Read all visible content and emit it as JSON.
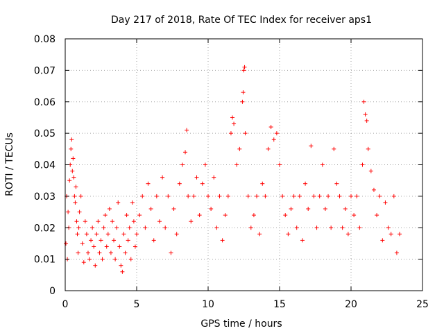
{
  "chart_data": {
    "type": "scatter",
    "title": "Day 217 of 2018, Rate Of TEC Index for receiver aps1",
    "xlabel": "GPS time / hours",
    "ylabel": "ROTI / TECUs",
    "xlim": [
      0,
      25
    ],
    "ylim": [
      0,
      0.08
    ],
    "xticks": [
      "0",
      "5",
      "10",
      "15",
      "20",
      "25"
    ],
    "yticks": [
      "0",
      "0.01",
      "0.02",
      "0.03",
      "0.04",
      "0.05",
      "0.06",
      "0.07",
      "0.08"
    ],
    "xtick_values": [
      0,
      5,
      10,
      15,
      20,
      25
    ],
    "ytick_values": [
      0,
      0.01,
      0.02,
      0.03,
      0.04,
      0.05,
      0.06,
      0.07,
      0.08
    ],
    "grid": true,
    "marker": "+",
    "color": "#ff0000",
    "points": [
      [
        0.05,
        0.015
      ],
      [
        0.1,
        0.03
      ],
      [
        0.15,
        0.01
      ],
      [
        0.2,
        0.025
      ],
      [
        0.25,
        0.02
      ],
      [
        0.3,
        0.035
      ],
      [
        0.35,
        0.04
      ],
      [
        0.4,
        0.045
      ],
      [
        0.45,
        0.048
      ],
      [
        0.5,
        0.038
      ],
      [
        0.55,
        0.042
      ],
      [
        0.6,
        0.036
      ],
      [
        0.65,
        0.03
      ],
      [
        0.7,
        0.028
      ],
      [
        0.75,
        0.033
      ],
      [
        0.8,
        0.022
      ],
      [
        0.85,
        0.018
      ],
      [
        0.9,
        0.012
      ],
      [
        0.95,
        0.02
      ],
      [
        1.0,
        0.025
      ],
      [
        1.1,
        0.03
      ],
      [
        1.2,
        0.015
      ],
      [
        1.3,
        0.009
      ],
      [
        1.4,
        0.022
      ],
      [
        1.5,
        0.018
      ],
      [
        1.6,
        0.012
      ],
      [
        1.7,
        0.01
      ],
      [
        1.8,
        0.016
      ],
      [
        1.9,
        0.02
      ],
      [
        2.0,
        0.014
      ],
      [
        2.1,
        0.008
      ],
      [
        2.2,
        0.018
      ],
      [
        2.3,
        0.022
      ],
      [
        2.4,
        0.012
      ],
      [
        2.5,
        0.016
      ],
      [
        2.6,
        0.01
      ],
      [
        2.7,
        0.02
      ],
      [
        2.8,
        0.024
      ],
      [
        2.9,
        0.014
      ],
      [
        3.0,
        0.018
      ],
      [
        3.1,
        0.026
      ],
      [
        3.2,
        0.012
      ],
      [
        3.3,
        0.022
      ],
      [
        3.4,
        0.016
      ],
      [
        3.5,
        0.01
      ],
      [
        3.6,
        0.02
      ],
      [
        3.7,
        0.028
      ],
      [
        3.8,
        0.014
      ],
      [
        3.9,
        0.008
      ],
      [
        4.0,
        0.006
      ],
      [
        4.1,
        0.018
      ],
      [
        4.2,
        0.012
      ],
      [
        4.3,
        0.024
      ],
      [
        4.4,
        0.016
      ],
      [
        4.5,
        0.02
      ],
      [
        4.6,
        0.01
      ],
      [
        4.7,
        0.028
      ],
      [
        4.8,
        0.022
      ],
      [
        4.9,
        0.014
      ],
      [
        5.0,
        0.018
      ],
      [
        5.2,
        0.024
      ],
      [
        5.4,
        0.03
      ],
      [
        5.6,
        0.02
      ],
      [
        5.8,
        0.034
      ],
      [
        6.0,
        0.026
      ],
      [
        6.2,
        0.016
      ],
      [
        6.4,
        0.03
      ],
      [
        6.6,
        0.022
      ],
      [
        6.8,
        0.036
      ],
      [
        7.0,
        0.02
      ],
      [
        7.2,
        0.03
      ],
      [
        7.4,
        0.012
      ],
      [
        7.6,
        0.026
      ],
      [
        7.8,
        0.018
      ],
      [
        8.0,
        0.034
      ],
      [
        8.2,
        0.04
      ],
      [
        8.4,
        0.044
      ],
      [
        8.5,
        0.051
      ],
      [
        8.6,
        0.03
      ],
      [
        8.8,
        0.022
      ],
      [
        9.0,
        0.03
      ],
      [
        9.2,
        0.036
      ],
      [
        9.4,
        0.024
      ],
      [
        9.6,
        0.034
      ],
      [
        9.8,
        0.04
      ],
      [
        10.0,
        0.03
      ],
      [
        10.2,
        0.026
      ],
      [
        10.4,
        0.036
      ],
      [
        10.6,
        0.02
      ],
      [
        10.8,
        0.03
      ],
      [
        11.0,
        0.016
      ],
      [
        11.2,
        0.024
      ],
      [
        11.4,
        0.03
      ],
      [
        11.6,
        0.05
      ],
      [
        11.7,
        0.055
      ],
      [
        11.8,
        0.053
      ],
      [
        12.0,
        0.04
      ],
      [
        12.2,
        0.045
      ],
      [
        12.4,
        0.06
      ],
      [
        12.45,
        0.063
      ],
      [
        12.5,
        0.07
      ],
      [
        12.55,
        0.071
      ],
      [
        12.6,
        0.05
      ],
      [
        12.8,
        0.03
      ],
      [
        13.0,
        0.02
      ],
      [
        13.2,
        0.024
      ],
      [
        13.4,
        0.03
      ],
      [
        13.6,
        0.018
      ],
      [
        13.8,
        0.034
      ],
      [
        14.0,
        0.03
      ],
      [
        14.2,
        0.045
      ],
      [
        14.4,
        0.052
      ],
      [
        14.6,
        0.048
      ],
      [
        14.8,
        0.05
      ],
      [
        15.0,
        0.04
      ],
      [
        15.2,
        0.03
      ],
      [
        15.4,
        0.024
      ],
      [
        15.6,
        0.018
      ],
      [
        15.8,
        0.026
      ],
      [
        16.0,
        0.03
      ],
      [
        16.2,
        0.02
      ],
      [
        16.4,
        0.03
      ],
      [
        16.6,
        0.016
      ],
      [
        16.8,
        0.034
      ],
      [
        17.0,
        0.026
      ],
      [
        17.2,
        0.046
      ],
      [
        17.4,
        0.03
      ],
      [
        17.6,
        0.02
      ],
      [
        17.8,
        0.03
      ],
      [
        18.0,
        0.04
      ],
      [
        18.2,
        0.026
      ],
      [
        18.4,
        0.03
      ],
      [
        18.6,
        0.02
      ],
      [
        18.8,
        0.045
      ],
      [
        19.0,
        0.034
      ],
      [
        19.2,
        0.03
      ],
      [
        19.4,
        0.02
      ],
      [
        19.6,
        0.026
      ],
      [
        19.8,
        0.018
      ],
      [
        20.0,
        0.03
      ],
      [
        20.2,
        0.024
      ],
      [
        20.4,
        0.03
      ],
      [
        20.6,
        0.02
      ],
      [
        20.8,
        0.04
      ],
      [
        20.9,
        0.06
      ],
      [
        21.0,
        0.056
      ],
      [
        21.1,
        0.054
      ],
      [
        21.2,
        0.045
      ],
      [
        21.4,
        0.038
      ],
      [
        21.6,
        0.032
      ],
      [
        21.8,
        0.024
      ],
      [
        22.0,
        0.03
      ],
      [
        22.2,
        0.016
      ],
      [
        22.4,
        0.028
      ],
      [
        22.6,
        0.02
      ],
      [
        22.8,
        0.018
      ],
      [
        23.0,
        0.03
      ],
      [
        23.2,
        0.012
      ],
      [
        23.4,
        0.018
      ]
    ]
  }
}
